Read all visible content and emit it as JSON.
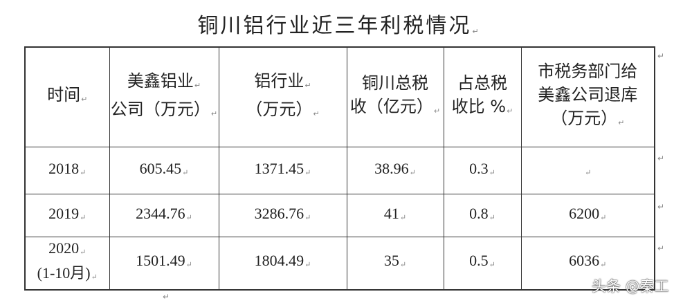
{
  "title": "铜川铝行业近三年利税情况",
  "table": {
    "headers": [
      [
        "时间"
      ],
      [
        "美鑫铝业",
        "公司（万元）"
      ],
      [
        "铝行业",
        "（万元）"
      ],
      [
        "铜川总税",
        "收（亿元）"
      ],
      [
        "占总税",
        "收比 %"
      ],
      [
        "市税务部门给",
        "美鑫公司退库",
        "（万元）"
      ]
    ],
    "rows": [
      {
        "time": [
          "2018"
        ],
        "meixin": "605.45",
        "industry": "1371.45",
        "total_tax": "38.96",
        "ratio": "0.3",
        "refund": ""
      },
      {
        "time": [
          "2019"
        ],
        "meixin": "2344.76",
        "industry": "3286.76",
        "total_tax": "41",
        "ratio": "0.8",
        "refund": "6200"
      },
      {
        "time": [
          "2020",
          "(1-10月)"
        ],
        "meixin": "1501.49",
        "industry": "1804.49",
        "total_tax": "35",
        "ratio": "0.5",
        "refund": "6036"
      }
    ]
  },
  "watermark": "头条 @秦工"
}
